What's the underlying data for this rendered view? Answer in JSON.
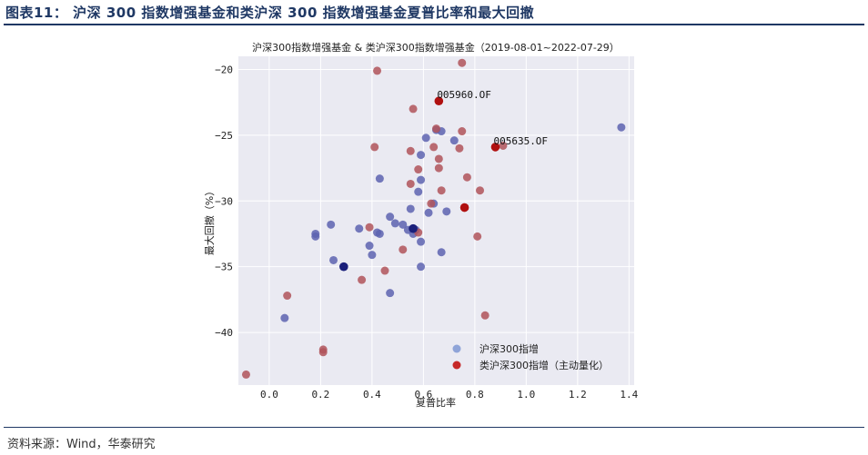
{
  "header": {
    "title": "图表11： 沪深 300 指数增强基金和类沪深 300 指数增强基金夏普比率和最大回撤"
  },
  "footer": {
    "source": "资料来源：Wind，华泰研究"
  },
  "colors": {
    "header": "#1f3864",
    "plot_bg": "#eaeaf2",
    "blue": "#5d63b0",
    "blue_dark": "#1a1f7a",
    "red": "#b0545a",
    "red_dark": "#b01010",
    "legend_blue": "#8fa4d8",
    "legend_red": "#c62828"
  },
  "chart_data": {
    "type": "scatter",
    "title": "沪深300指数增强基金 & 类沪深300指数增强基金（2019-08-01~2022-07-29）",
    "xlabel": "夏普比率",
    "ylabel": "最大回撤（%）",
    "xlim": [
      -0.12,
      1.42
    ],
    "ylim": [
      -44.0,
      -19.0
    ],
    "xticks": [
      0.0,
      0.2,
      0.4,
      0.6,
      0.8,
      1.0,
      1.2,
      1.4
    ],
    "xtick_labels": [
      "0.0",
      "0.2",
      "0.4",
      "0.6",
      "0.8",
      "1.0",
      "1.2",
      "1.4"
    ],
    "yticks": [
      -40,
      -35,
      -30,
      -25,
      -20
    ],
    "ytick_labels": [
      "−40",
      "−35",
      "−30",
      "−25",
      "−20"
    ],
    "grid": true,
    "legend_position": "lower-right",
    "series": [
      {
        "name": "沪深300指增",
        "color": "#5d63b0",
        "points": [
          [
            0.06,
            -38.9
          ],
          [
            0.18,
            -32.5
          ],
          [
            0.18,
            -32.7
          ],
          [
            0.24,
            -31.8
          ],
          [
            0.25,
            -34.5
          ],
          [
            0.29,
            -35.0
          ],
          [
            0.35,
            -32.1
          ],
          [
            0.39,
            -33.4
          ],
          [
            0.4,
            -34.1
          ],
          [
            0.42,
            -32.4
          ],
          [
            0.43,
            -28.3
          ],
          [
            0.43,
            -32.5
          ],
          [
            0.47,
            -31.2
          ],
          [
            0.47,
            -37.0
          ],
          [
            0.49,
            -31.7
          ],
          [
            0.52,
            -31.8
          ],
          [
            0.54,
            -32.2
          ],
          [
            0.55,
            -30.6
          ],
          [
            0.56,
            -32.5
          ],
          [
            0.57,
            -32.2
          ],
          [
            0.58,
            -29.3
          ],
          [
            0.59,
            -35.0
          ],
          [
            0.59,
            -33.1
          ],
          [
            0.59,
            -28.4
          ],
          [
            0.59,
            -26.5
          ],
          [
            0.61,
            -25.2
          ],
          [
            0.62,
            -30.9
          ],
          [
            0.64,
            -30.2
          ],
          [
            0.65,
            -24.6
          ],
          [
            0.67,
            -24.7
          ],
          [
            0.67,
            -33.9
          ],
          [
            0.69,
            -30.8
          ],
          [
            0.72,
            -25.4
          ],
          [
            1.37,
            -24.4
          ]
        ]
      },
      {
        "name": "类沪深300指增（主动量化）",
        "color": "#b0545a",
        "points": [
          [
            -0.09,
            -43.2
          ],
          [
            0.07,
            -37.2
          ],
          [
            0.21,
            -41.3
          ],
          [
            0.21,
            -41.5
          ],
          [
            0.36,
            -36.0
          ],
          [
            0.39,
            -32.0
          ],
          [
            0.41,
            -25.9
          ],
          [
            0.42,
            -20.1
          ],
          [
            0.45,
            -35.3
          ],
          [
            0.52,
            -33.7
          ],
          [
            0.55,
            -28.7
          ],
          [
            0.55,
            -26.2
          ],
          [
            0.56,
            -23.0
          ],
          [
            0.58,
            -27.6
          ],
          [
            0.58,
            -32.4
          ],
          [
            0.63,
            -30.2
          ],
          [
            0.64,
            -25.9
          ],
          [
            0.65,
            -24.5
          ],
          [
            0.66,
            -27.5
          ],
          [
            0.66,
            -26.8
          ],
          [
            0.67,
            -29.2
          ],
          [
            0.74,
            -26.0
          ],
          [
            0.75,
            -19.5
          ],
          [
            0.75,
            -24.7
          ],
          [
            0.77,
            -28.2
          ],
          [
            0.81,
            -32.7
          ],
          [
            0.82,
            -29.2
          ],
          [
            0.84,
            -38.7
          ],
          [
            0.91,
            -25.8
          ]
        ]
      }
    ],
    "highlight_points": [
      {
        "series": "沪深300指增",
        "x": 0.56,
        "y": -32.1,
        "color": "#1a1f7a"
      },
      {
        "series": "类沪深300指增（主动量化）",
        "x": 0.66,
        "y": -22.4,
        "color": "#b01010",
        "label": "005960.OF"
      },
      {
        "series": "类沪深300指增（主动量化）",
        "x": 0.88,
        "y": -25.9,
        "color": "#b01010",
        "label": "005635.OF"
      },
      {
        "series": "类沪深300指增（主动量化）",
        "x": 0.76,
        "y": -30.5,
        "color": "#b01010"
      },
      {
        "series": "沪深300指增",
        "x": 0.29,
        "y": -35.0,
        "color": "#1a1f7a"
      }
    ]
  }
}
